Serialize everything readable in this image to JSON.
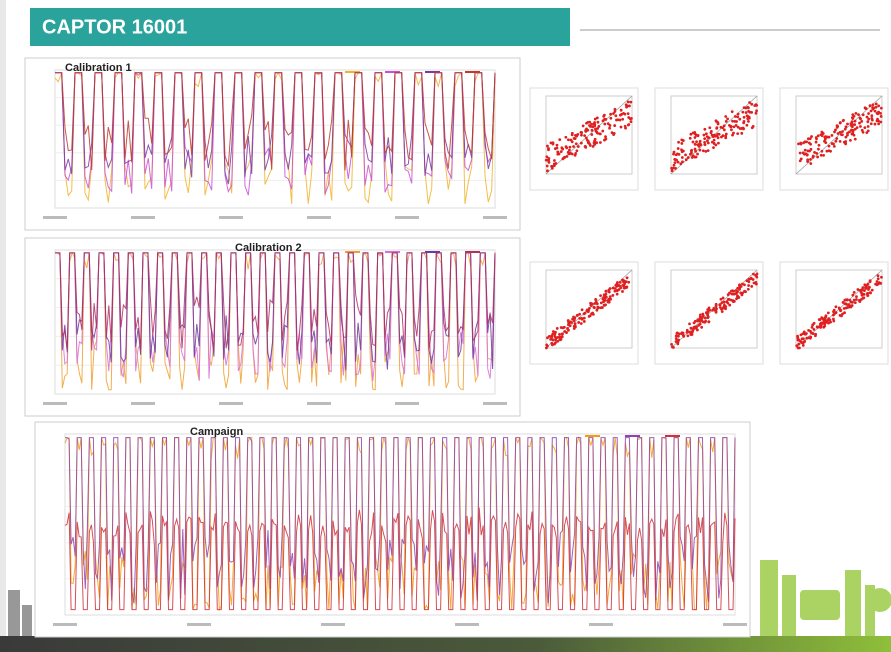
{
  "header": {
    "title": "CAPTOR 16001"
  },
  "panels": [
    {
      "title": "Calibration 1"
    },
    {
      "title": "Calibration 2"
    },
    {
      "title": "Campaign"
    }
  ]
}
